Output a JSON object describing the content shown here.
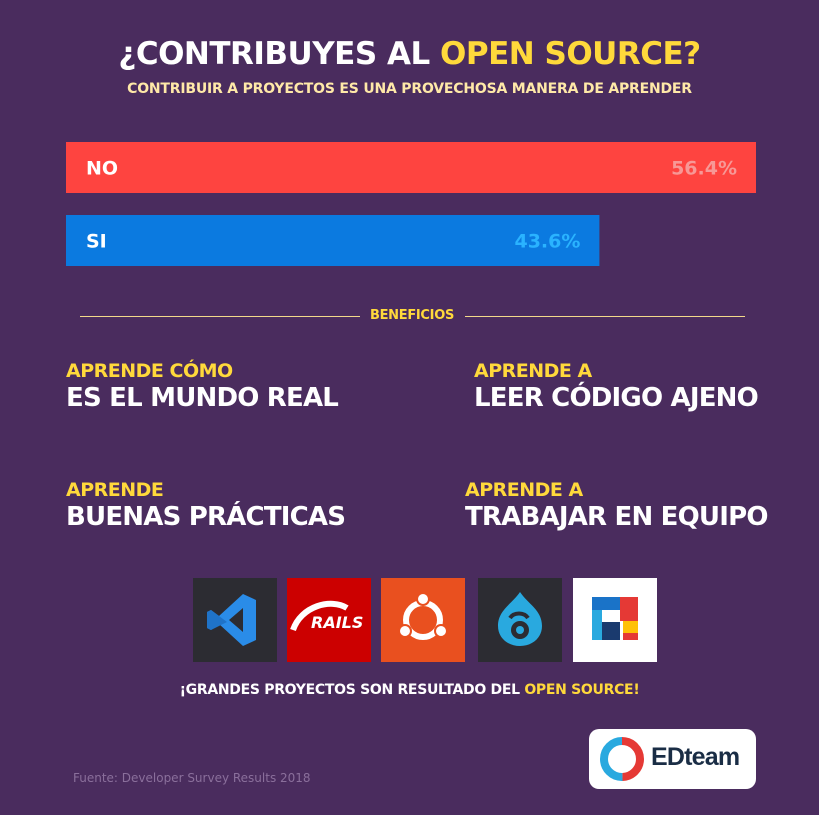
{
  "header": {
    "title_prefix": "¿CONTRIBUYES AL ",
    "title_highlight": "OPEN SOURCE?",
    "subtitle": "CONTRIBUIR A PROYECTOS  ES UNA PROVECHOSA MANERA DE APRENDER"
  },
  "chart_data": {
    "type": "bar",
    "orientation": "horizontal",
    "categories": [
      "NO",
      "SI"
    ],
    "values": [
      56.4,
      43.6
    ],
    "value_labels": [
      "56.4%",
      "43.6%"
    ],
    "colors": [
      "#fe4440",
      "#0b7ae0"
    ],
    "value_label_colors": [
      "#f79896",
      "#2ab3ff"
    ],
    "xlim": [
      0,
      56.4
    ]
  },
  "benefits": {
    "heading": "BENEFICIOS",
    "items": [
      {
        "small": "APRENDE CÓMO",
        "big": "ES EL MUNDO REAL"
      },
      {
        "small": "APRENDE A",
        "big": "LEER CÓDIGO AJENO"
      },
      {
        "small": "APRENDE",
        "big": "BUENAS PRÁCTICAS"
      },
      {
        "small": "APRENDE A",
        "big": "TRABAJAR EN EQUIPO"
      }
    ]
  },
  "logos": {
    "items": [
      {
        "icon": "vscode-logo-icon",
        "bg": "#2c2c32"
      },
      {
        "icon": "rails-logo-icon",
        "bg": "#cc0000",
        "label": "RAILS"
      },
      {
        "icon": "ubuntu-logo-icon",
        "bg": "#e9501f"
      },
      {
        "icon": "drupal-logo-icon",
        "bg": "#2c2c32"
      },
      {
        "icon": "colorful-blocks-logo-icon",
        "bg": "#ffffff"
      }
    ]
  },
  "footer": {
    "text_prefix": "¡GRANDES PROYECTOS SON RESULTADO DEL ",
    "text_highlight": "OPEN SOURCE!",
    "source": "Fuente: Developer Survey Results 2018",
    "brand": "EDteam"
  }
}
